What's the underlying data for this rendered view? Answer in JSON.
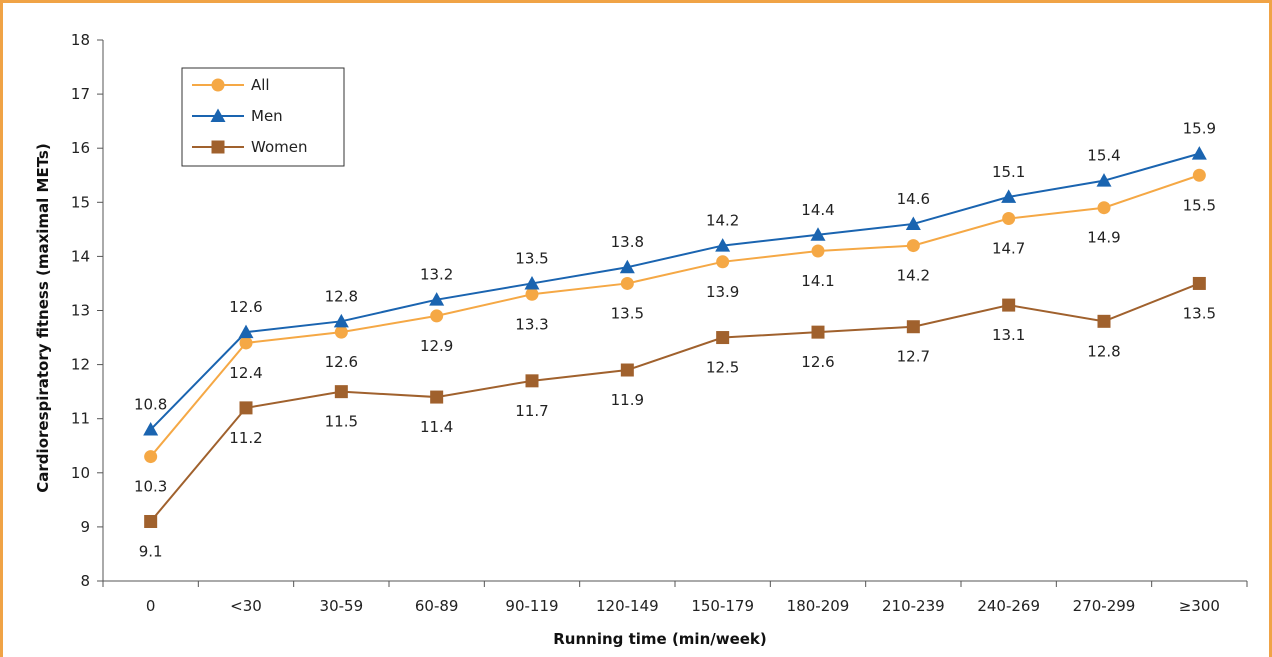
{
  "chart_data": {
    "type": "line",
    "title": "",
    "xlabel": "Running time (min/week)",
    "ylabel": "Cardiorespiratory fitness (maximal METs)",
    "ylim": [
      8,
      18
    ],
    "yticks": [
      "8",
      "9",
      "10",
      "11",
      "12",
      "13",
      "14",
      "15",
      "16",
      "17",
      "18"
    ],
    "categories": [
      "0",
      "<30",
      "30-59",
      "60-89",
      "90-119",
      "120-149",
      "150-179",
      "180-209",
      "210-239",
      "240-269",
      "270-299",
      "≥300"
    ],
    "grid": false,
    "legend_position": "top-left",
    "series": [
      {
        "name": "All",
        "color": "#f5a845",
        "marker": "circle",
        "values": [
          10.3,
          12.4,
          12.6,
          12.9,
          13.3,
          13.5,
          13.9,
          14.1,
          14.2,
          14.7,
          14.9,
          15.5
        ],
        "labels": [
          "10.3",
          "12.4",
          "12.6",
          "12.9",
          "13.3",
          "13.5",
          "13.9",
          "14.1",
          "14.2",
          "14.7",
          "14.9",
          "15.5"
        ]
      },
      {
        "name": "Men",
        "color": "#1a64b0",
        "marker": "triangle",
        "values": [
          10.8,
          12.6,
          12.8,
          13.2,
          13.5,
          13.8,
          14.2,
          14.4,
          14.6,
          15.1,
          15.4,
          15.9
        ],
        "labels": [
          "10.8",
          "12.6",
          "12.8",
          "13.2",
          "13.5",
          "13.8",
          "14.2",
          "14.4",
          "14.6",
          "15.1",
          "15.4",
          "15.9"
        ]
      },
      {
        "name": "Women",
        "color": "#a0612d",
        "marker": "square",
        "values": [
          9.1,
          11.2,
          11.5,
          11.4,
          11.7,
          11.9,
          12.5,
          12.6,
          12.7,
          13.1,
          12.8,
          13.5
        ],
        "labels": [
          "9.1",
          "11.2",
          "11.5",
          "11.4",
          "11.7",
          "11.9",
          "12.5",
          "12.6",
          "12.7",
          "13.1",
          "12.8",
          "13.5"
        ]
      }
    ]
  }
}
